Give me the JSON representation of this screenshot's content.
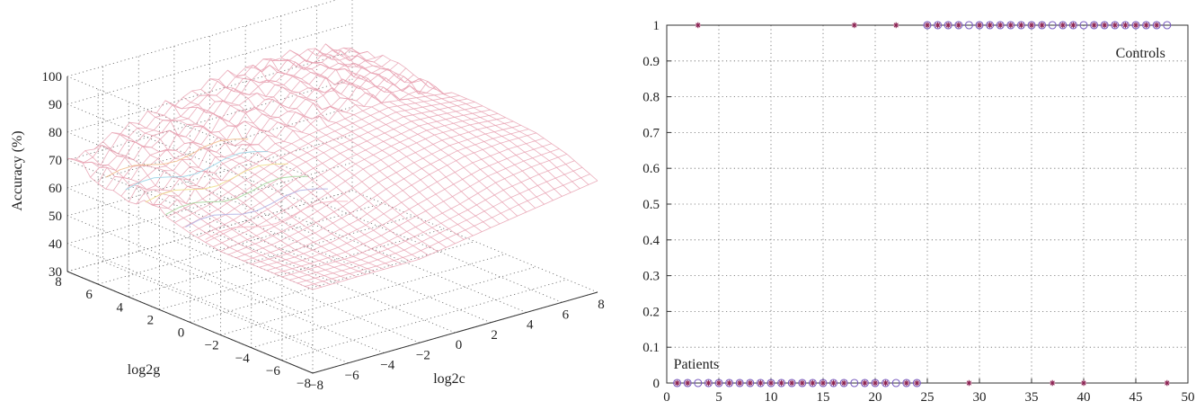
{
  "colors": {
    "axis": "#333333",
    "grid": "#666666",
    "surface_main": "#e8a0b0",
    "surface_accents": [
      "#f4b6c2",
      "#b4b4e6",
      "#a8d8a0",
      "#f0e090",
      "#9fd6e8",
      "#f2c090"
    ],
    "marker_predicted": "#8b2252",
    "marker_actual": "#7a5cc0"
  },
  "chart_data": [
    {
      "type": "surface",
      "zlabel": "Accuracy (%)",
      "xlabel": "log2c",
      "ylabel": "log2g",
      "zlim": [
        30,
        100
      ],
      "xlim": [
        -8,
        8
      ],
      "ylim": [
        -8,
        8
      ],
      "zticks": [
        "30",
        "40",
        "50",
        "60",
        "70",
        "80",
        "90",
        "100"
      ],
      "xticks": [
        "−8",
        "−6",
        "−4",
        "−2",
        "0",
        "2",
        "4",
        "6",
        "8"
      ],
      "yticks": [
        "−8",
        "−6",
        "−4",
        "−2",
        "0",
        "2",
        "4",
        "6",
        "8"
      ],
      "grid": true,
      "surface": {
        "x": [
          -8,
          -6,
          -4,
          -2,
          0,
          2,
          4,
          6,
          8
        ],
        "y": [
          -8,
          -6,
          -4,
          -2,
          0,
          2,
          4,
          6,
          8
        ],
        "z": [
          [
            60,
            60,
            60,
            60,
            62,
            64,
            66,
            68,
            70
          ],
          [
            60,
            60,
            60,
            62,
            65,
            68,
            72,
            74,
            75
          ],
          [
            60,
            60,
            62,
            65,
            70,
            74,
            77,
            78,
            78
          ],
          [
            60,
            62,
            65,
            70,
            75,
            78,
            80,
            80,
            79
          ],
          [
            62,
            65,
            70,
            75,
            78,
            80,
            82,
            81,
            80
          ],
          [
            65,
            68,
            73,
            77,
            80,
            82,
            84,
            82,
            80
          ],
          [
            66,
            70,
            75,
            79,
            82,
            84,
            85,
            83,
            80
          ],
          [
            68,
            72,
            76,
            80,
            83,
            85,
            86,
            84,
            81
          ],
          [
            70,
            73,
            77,
            80,
            83,
            85,
            86,
            84,
            81
          ]
        ]
      }
    },
    {
      "type": "scatter",
      "xlim": [
        0,
        50
      ],
      "ylim": [
        0,
        1
      ],
      "xticks": [
        "0",
        "5",
        "10",
        "15",
        "20",
        "25",
        "30",
        "35",
        "40",
        "45",
        "50"
      ],
      "yticks": [
        "0",
        "0.1",
        "0.2",
        "0.3",
        "0.4",
        "0.5",
        "0.6",
        "0.7",
        "0.8",
        "0.9",
        "1"
      ],
      "grid": true,
      "annotations": [
        {
          "text": "Controls",
          "x": 48,
          "y": 0.97
        },
        {
          "text": "Patients",
          "x": 1,
          "y": 0.03
        }
      ],
      "series": [
        {
          "marker": "circle",
          "x": [
            1,
            2,
            3,
            4,
            5,
            6,
            7,
            8,
            9,
            10,
            11,
            12,
            13,
            14,
            15,
            16,
            17,
            18,
            19,
            20,
            21,
            22,
            23,
            24,
            25,
            26,
            27,
            28,
            29,
            30,
            31,
            32,
            33,
            34,
            35,
            36,
            37,
            38,
            39,
            40,
            41,
            42,
            43,
            44,
            45,
            46,
            47,
            48
          ],
          "y": [
            0,
            0,
            0,
            0,
            0,
            0,
            0,
            0,
            0,
            0,
            0,
            0,
            0,
            0,
            0,
            0,
            0,
            0,
            0,
            0,
            0,
            0,
            0,
            0,
            1,
            1,
            1,
            1,
            1,
            1,
            1,
            1,
            1,
            1,
            1,
            1,
            1,
            1,
            1,
            1,
            1,
            1,
            1,
            1,
            1,
            1,
            1,
            1
          ]
        },
        {
          "marker": "asterisk",
          "x": [
            1,
            2,
            3,
            4,
            5,
            6,
            7,
            8,
            9,
            10,
            11,
            12,
            13,
            14,
            15,
            16,
            17,
            18,
            19,
            20,
            21,
            22,
            23,
            24,
            25,
            26,
            27,
            28,
            29,
            30,
            31,
            32,
            33,
            34,
            35,
            36,
            37,
            38,
            39,
            40,
            41,
            42,
            43,
            44,
            45,
            46,
            47,
            48
          ],
          "y": [
            0,
            0,
            1,
            0,
            0,
            0,
            0,
            0,
            0,
            0,
            0,
            0,
            0,
            0,
            0,
            0,
            0,
            1,
            0,
            0,
            0,
            1,
            0,
            0,
            1,
            1,
            1,
            1,
            0,
            1,
            1,
            1,
            1,
            1,
            1,
            1,
            0,
            1,
            1,
            0,
            1,
            1,
            1,
            1,
            1,
            1,
            1,
            0
          ]
        }
      ]
    }
  ]
}
